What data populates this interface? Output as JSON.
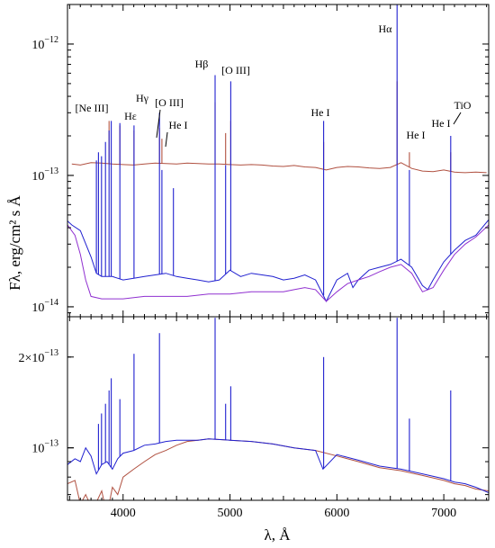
{
  "chart_data": {
    "type": "line",
    "xlabel": "λ, Å",
    "ylabel": "Fλ, erg/cm² s Å",
    "xlim": [
      3480,
      7420
    ],
    "x_ticks": [
      4000,
      5000,
      6000,
      7000
    ],
    "x_tick_labels": [
      "4000",
      "5000",
      "6000",
      "7000"
    ],
    "panels": [
      {
        "name": "top",
        "yscale": "log",
        "ylim": [
          8.4e-15,
          2e-12
        ],
        "y_major_ticks": [
          1e-14,
          1e-13,
          1e-12
        ],
        "y_tick_labels": [
          {
            "value": 1e-14,
            "base": "10",
            "exp": "−14"
          },
          {
            "value": 1e-13,
            "base": "10",
            "exp": "−13"
          },
          {
            "value": 1e-12,
            "base": "10",
            "exp": "−12"
          }
        ],
        "line_labels": [
          {
            "text": "[Ne III]",
            "x": 3869
          },
          {
            "text": "Hε",
            "x": 3970
          },
          {
            "text": "Hγ",
            "x": 4340
          },
          {
            "text": "[O III]",
            "x": 4363
          },
          {
            "text": "He I",
            "x": 4471
          },
          {
            "text": "Hβ",
            "x": 4861
          },
          {
            "text": "[O III]",
            "x": 5007
          },
          {
            "text": "He I",
            "x": 5876
          },
          {
            "text": "Hα",
            "x": 6563
          },
          {
            "text": "He I",
            "x": 6678
          },
          {
            "text": "He I",
            "x": 7065
          },
          {
            "text": "TiO",
            "x": 7100
          }
        ],
        "series": [
          {
            "color": "#b05040",
            "x": [
              3520,
              3600,
              3700,
              3800,
              3900,
              4000,
              4100,
              4200,
              4300,
              4400,
              4500,
              4600,
              4700,
              4800,
              4900,
              5000,
              5100,
              5200,
              5300,
              5400,
              5500,
              5600,
              5700,
              5800,
              5900,
              6000,
              6100,
              6200,
              6300,
              6400,
              6500,
              6600,
              6700,
              6800,
              6900,
              7000,
              7100,
              7200,
              7300,
              7400
            ],
            "y": [
              1.22e-13,
              1.2e-13,
              1.25e-13,
              1.24e-13,
              1.22e-13,
              1.21e-13,
              1.2e-13,
              1.22e-13,
              1.24e-13,
              1.23e-13,
              1.22e-13,
              1.24e-13,
              1.23e-13,
              1.22e-13,
              1.22e-13,
              1.21e-13,
              1.2e-13,
              1.21e-13,
              1.2e-13,
              1.18e-13,
              1.17e-13,
              1.19e-13,
              1.16e-13,
              1.15e-13,
              1.1e-13,
              1.15e-13,
              1.17e-13,
              1.16e-13,
              1.14e-13,
              1.13e-13,
              1.15e-13,
              1.25e-13,
              1.13e-13,
              1.08e-13,
              1.07e-13,
              1.1e-13,
              1.06e-13,
              1.05e-13,
              1.06e-13,
              1.05e-13
            ],
            "emission_lines": [
              [
                3869,
                2.6e-13
              ],
              [
                3970,
                2.4e-13
              ],
              [
                4102,
                2.2e-13
              ],
              [
                4340,
                2.3e-13
              ],
              [
                4363,
                1.9e-13
              ],
              [
                4861,
                3.6e-13
              ],
              [
                4959,
                2.1e-13
              ],
              [
                5007,
                2.6e-13
              ],
              [
                5876,
                1.8e-13
              ],
              [
                6563,
                5.2e-13
              ],
              [
                6678,
                1.5e-13
              ],
              [
                7065,
                1.5e-13
              ]
            ]
          },
          {
            "color": "#2020d0",
            "x": [
              3480,
              3520,
              3600,
              3700,
              3750,
              3800,
              3900,
              4000,
              4100,
              4200,
              4300,
              4400,
              4500,
              4600,
              4700,
              4800,
              4900,
              5000,
              5100,
              5200,
              5300,
              5400,
              5500,
              5600,
              5700,
              5800,
              5900,
              6000,
              6100,
              6150,
              6200,
              6300,
              6400,
              6500,
              6600,
              6700,
              6800,
              6850,
              6900,
              7000,
              7100,
              7200,
              7300,
              7420
            ],
            "y": [
              4.5e-14,
              4.2e-14,
              3.8e-14,
              2.4e-14,
              1.8e-14,
              1.7e-14,
              1.7e-14,
              1.6e-14,
              1.65e-14,
              1.7e-14,
              1.75e-14,
              1.8e-14,
              1.7e-14,
              1.65e-14,
              1.6e-14,
              1.55e-14,
              1.6e-14,
              1.9e-14,
              1.7e-14,
              1.8e-14,
              1.75e-14,
              1.7e-14,
              1.6e-14,
              1.65e-14,
              1.75e-14,
              1.6e-14,
              1.1e-14,
              1.6e-14,
              1.8e-14,
              1.4e-14,
              1.6e-14,
              1.9e-14,
              2e-14,
              2.1e-14,
              2.3e-14,
              2e-14,
              1.45e-14,
              1.35e-14,
              1.6e-14,
              2.2e-14,
              2.7e-14,
              3.2e-14,
              3.5e-14,
              4.6e-14
            ],
            "emission_lines": [
              [
                3750,
                1.3e-13
              ],
              [
                3770,
                1.5e-13
              ],
              [
                3798,
                1.4e-13
              ],
              [
                3835,
                1.8e-13
              ],
              [
                3869,
                2.2e-13
              ],
              [
                3889,
                2.6e-13
              ],
              [
                3970,
                2.5e-13
              ],
              [
                4102,
                2.4e-13
              ],
              [
                4340,
                3e-13
              ],
              [
                4363,
                1.1e-13
              ],
              [
                4471,
                8e-14
              ],
              [
                4861,
                5.8e-13
              ],
              [
                4959,
                1.2e-13
              ],
              [
                5007,
                5.2e-13
              ],
              [
                5876,
                2.6e-13
              ],
              [
                6563,
                2e-12
              ],
              [
                6678,
                1.1e-13
              ],
              [
                7065,
                2e-13
              ]
            ]
          },
          {
            "color": "#9030d0",
            "x": [
              3480,
              3550,
              3600,
              3650,
              3700,
              3800,
              4000,
              4200,
              4400,
              4600,
              4800,
              5000,
              5200,
              5400,
              5500,
              5600,
              5700,
              5800,
              5900,
              6000,
              6100,
              6200,
              6300,
              6400,
              6500,
              6600,
              6700,
              6800,
              6900,
              7000,
              7100,
              7200,
              7300,
              7420
            ],
            "y": [
              4.2e-14,
              3.5e-14,
              2.5e-14,
              1.6e-14,
              1.2e-14,
              1.15e-14,
              1.15e-14,
              1.2e-14,
              1.2e-14,
              1.2e-14,
              1.25e-14,
              1.25e-14,
              1.3e-14,
              1.3e-14,
              1.3e-14,
              1.35e-14,
              1.4e-14,
              1.35e-14,
              1.1e-14,
              1.3e-14,
              1.5e-14,
              1.6e-14,
              1.7e-14,
              1.85e-14,
              2e-14,
              2.1e-14,
              1.8e-14,
              1.3e-14,
              1.4e-14,
              1.9e-14,
              2.5e-14,
              3e-14,
              3.4e-14,
              4.2e-14
            ],
            "emission_lines": []
          }
        ]
      },
      {
        "name": "bottom",
        "yscale": "log",
        "ylim": [
          6.7e-14,
          2.72e-13
        ],
        "y_major_ticks": [
          1e-13,
          2e-13
        ],
        "y_tick_labels": [
          {
            "value": 1e-13,
            "base": "10",
            "exp": "−13"
          },
          {
            "value": 2e-13,
            "base": "2×10",
            "exp": "−13"
          }
        ],
        "series": [
          {
            "color": "#b05040",
            "x": [
              3480,
              3550,
              3600,
              3650,
              3700,
              3750,
              3800,
              3850,
              3900,
              3950,
              4000,
              4100,
              4200,
              4300,
              4400,
              4500,
              4600,
              4700,
              4800,
              5000,
              5200,
              5400,
              5600,
              5800,
              6000,
              6200,
              6400,
              6600,
              6800,
              7000,
              7100,
              7200,
              7300,
              7420
            ],
            "y": [
              7.6e-14,
              7.8e-14,
              6.5e-14,
              7e-14,
              6.4e-14,
              6.6e-14,
              7.2e-14,
              6e-14,
              7.4e-14,
              7e-14,
              8e-14,
              8.5e-14,
              9e-14,
              9.5e-14,
              9.8e-14,
              1.02e-13,
              1.05e-13,
              1.06e-13,
              1.07e-13,
              1.06e-13,
              1.05e-13,
              1.03e-13,
              1e-13,
              9.8e-14,
              9.4e-14,
              9e-14,
              8.6e-14,
              8.4e-14,
              8.1e-14,
              7.8e-14,
              7.6e-14,
              7.5e-14,
              7.3e-14,
              7.2e-14
            ],
            "emission_lines": []
          },
          {
            "color": "#2020d0",
            "x": [
              3480,
              3550,
              3600,
              3650,
              3700,
              3750,
              3800,
              3850,
              3900,
              3950,
              4000,
              4100,
              4200,
              4300,
              4400,
              4500,
              4600,
              4700,
              4800,
              5000,
              5200,
              5400,
              5600,
              5800,
              5870,
              6000,
              6200,
              6400,
              6600,
              6800,
              7000,
              7100,
              7200,
              7300,
              7420
            ],
            "y": [
              8.8e-14,
              9.2e-14,
              9e-14,
              1e-13,
              9.4e-14,
              8.2e-14,
              8.8e-14,
              9e-14,
              8.5e-14,
              9.2e-14,
              9.6e-14,
              9.8e-14,
              1.02e-13,
              1.03e-13,
              1.05e-13,
              1.06e-13,
              1.06e-13,
              1.06e-13,
              1.07e-13,
              1.06e-13,
              1.05e-13,
              1.03e-13,
              1e-13,
              9.8e-14,
              8.5e-14,
              9.5e-14,
              9.1e-14,
              8.7e-14,
              8.5e-14,
              8.2e-14,
              7.9e-14,
              7.7e-14,
              7.6e-14,
              7.4e-14,
              7.1e-14
            ],
            "emission_lines": [
              [
                3770,
                1.2e-13
              ],
              [
                3798,
                1.3e-13
              ],
              [
                3835,
                1.4e-13
              ],
              [
                3869,
                1.55e-13
              ],
              [
                3889,
                1.7e-13
              ],
              [
                3970,
                1.45e-13
              ],
              [
                4102,
                2.05e-13
              ],
              [
                4340,
                2.4e-13
              ],
              [
                4861,
                2.7e-13
              ],
              [
                4959,
                1.4e-13
              ],
              [
                5007,
                1.6e-13
              ],
              [
                5876,
                2e-13
              ],
              [
                6563,
                2.7e-13
              ],
              [
                6678,
                1.25e-13
              ],
              [
                7065,
                1.55e-13
              ]
            ]
          }
        ]
      }
    ]
  }
}
